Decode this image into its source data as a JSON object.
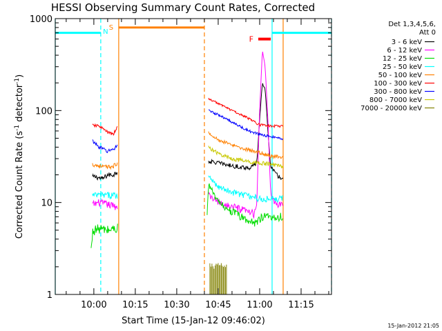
{
  "chart_data": {
    "type": "line",
    "title": "HESSI Observing Summary Count Rates, Corrected",
    "xlabel": "Start Time (15-Jan-12 09:46:02)",
    "ylabel": "Corrected Count Rate (s⁻¹ detector⁻¹)",
    "ylabel_parts": [
      "Corrected Count Rate (s",
      "-1",
      " detector",
      "-1",
      ")"
    ],
    "yscale": "log",
    "ylim": [
      1,
      1000
    ],
    "y_ticks": [
      {
        "value": 1,
        "label": "1"
      },
      {
        "value": 10,
        "label": "10"
      },
      {
        "value": 100,
        "label": "100"
      },
      {
        "value": 1000,
        "label": "1000"
      }
    ],
    "xlim": [
      "09:46:02",
      "11:26:00"
    ],
    "x_ticks": [
      "10:00",
      "10:15",
      "10:30",
      "10:45",
      "11:00",
      "11:15"
    ],
    "grid": false,
    "legend_position": "right",
    "legend_header": [
      "Det 1,3,4,5,6,",
      "Att 0"
    ],
    "series": [
      {
        "name": "3 - 6 keV",
        "color": "#000000",
        "segments": [
          {
            "x": [
              "09:59:30",
              "10:01",
              "10:03",
              "10:05",
              "10:07",
              "10:08:40"
            ],
            "y": [
              19,
              19,
              18,
              20,
              20,
              22
            ]
          },
          {
            "x": [
              "10:41:30",
              "10:45",
              "10:50",
              "10:55",
              "10:57",
              "10:59",
              "11:00",
              "11:01",
              "11:02",
              "11:03",
              "11:04",
              "11:06",
              "11:08:30"
            ],
            "y": [
              28,
              27,
              25,
              24,
              24,
              27,
              80,
              200,
              170,
              60,
              25,
              20,
              18
            ]
          }
        ]
      },
      {
        "name": "6 - 12 keV",
        "color": "#ff00ff",
        "segments": [
          {
            "x": [
              "09:59:30",
              "10:02",
              "10:05",
              "10:08:40"
            ],
            "y": [
              9.5,
              10,
              9.5,
              9
            ]
          },
          {
            "x": [
              "10:41:30",
              "10:45",
              "10:50",
              "10:55",
              "10:58",
              "10:59",
              "11:00",
              "11:01",
              "11:02",
              "11:03",
              "11:04",
              "11:06",
              "11:08:30"
            ],
            "y": [
              12,
              10,
              9,
              8,
              7.5,
              10,
              100,
              450,
              300,
              80,
              12,
              9.5,
              9.5
            ]
          }
        ]
      },
      {
        "name": "12 - 25 keV",
        "color": "#00dd00",
        "segments": [
          {
            "x": [
              "09:59:00",
              "09:59:40",
              "10:02",
              "10:05",
              "10:08:40"
            ],
            "y": [
              3,
              5,
              5.2,
              5,
              5.3
            ]
          },
          {
            "x": [
              "10:41:00",
              "10:41:30",
              "10:45",
              "10:50",
              "10:55",
              "10:58",
              "11:01",
              "11:04",
              "11:08:30"
            ],
            "y": [
              7,
              16,
              10,
              8,
              6.5,
              6,
              7,
              7,
              7
            ]
          }
        ]
      },
      {
        "name": "25 - 50 keV",
        "color": "#00ffff",
        "segments": [
          {
            "x": [
              "09:59:30",
              "10:08:40"
            ],
            "y": [
              12,
              12
            ]
          },
          {
            "x": [
              "10:41:30",
              "10:45",
              "10:50",
              "10:55",
              "11:00",
              "11:04",
              "11:08:30"
            ],
            "y": [
              19,
              15,
              13,
              12,
              11,
              11,
              11
            ]
          }
        ]
      },
      {
        "name": "50 - 100 keV",
        "color": "#ff8000",
        "segments": [
          {
            "x": [
              "09:59:30",
              "10:02",
              "10:05",
              "10:08:40"
            ],
            "y": [
              26,
              25,
              24,
              26
            ]
          },
          {
            "x": [
              "10:41:30",
              "10:45",
              "10:50",
              "10:55",
              "11:00",
              "11:04",
              "11:08:30"
            ],
            "y": [
              58,
              48,
              42,
              38,
              35,
              32,
              31
            ]
          }
        ]
      },
      {
        "name": "100 - 300 keV",
        "color": "#ff0000",
        "segments": [
          {
            "x": [
              "09:59:30",
              "10:02",
              "10:05",
              "10:07",
              "10:08:40"
            ],
            "y": [
              69,
              68,
              58,
              55,
              67
            ]
          },
          {
            "x": [
              "10:41:30",
              "10:45",
              "10:50",
              "10:55",
              "11:00",
              "11:04",
              "11:08:30"
            ],
            "y": [
              135,
              120,
              100,
              85,
              70,
              68,
              68
            ]
          }
        ]
      },
      {
        "name": "300 - 800 keV",
        "color": "#0000ff",
        "segments": [
          {
            "x": [
              "09:59:30",
              "10:02",
              "10:05",
              "10:07",
              "10:08:40"
            ],
            "y": [
              47,
              40,
              36,
              38,
              42
            ]
          },
          {
            "x": [
              "10:41:30",
              "10:45",
              "10:50",
              "10:55",
              "11:00",
              "11:04",
              "11:08:30"
            ],
            "y": [
              100,
              90,
              75,
              62,
              55,
              52,
              50
            ]
          }
        ]
      },
      {
        "name": "800 - 7000 keV",
        "color": "#c8c800",
        "segments": [
          {
            "x": [
              "10:41:30",
              "10:45",
              "10:50",
              "10:55",
              "11:00",
              "11:04",
              "11:08:30"
            ],
            "y": [
              40,
              34,
              30,
              28,
              27,
              26,
              25
            ]
          }
        ]
      },
      {
        "name": "7000 - 20000 keV",
        "color": "#808000",
        "segments": [
          {
            "x": [
              "10:42:00",
              "10:44:00",
              "10:46:00",
              "10:48:00"
            ],
            "y": [
              2,
              2,
              2,
              2
            ]
          }
        ]
      }
    ],
    "annotations": {
      "colors": {
        "night": "#00ffff",
        "saa": "#ff8000",
        "flare": "#ff0000"
      },
      "labels": {
        "night": "N",
        "saa": "S",
        "flare": "F"
      },
      "night_bars": [
        {
          "start": "09:46:02",
          "end": "10:02:30",
          "y": 700
        },
        {
          "start": "11:04:30",
          "end": "11:26:00",
          "y": 700
        }
      ],
      "saa_bar": {
        "start": "10:09:00",
        "end": "10:40:00",
        "y": 800
      },
      "flare_bar": {
        "start": "10:59:30",
        "end": "11:04:00",
        "y": 600
      },
      "night_markers": [
        {
          "time": "09:46:02",
          "style": "solid"
        },
        {
          "time": "10:02:30",
          "style": "dashed"
        },
        {
          "time": "11:04:30",
          "style": "solid"
        },
        {
          "time": "11:26:00",
          "style": "dashed"
        }
      ],
      "saa_markers": [
        {
          "time": "10:09:00",
          "style": "solid"
        },
        {
          "time": "10:40:00",
          "style": "dashed"
        },
        {
          "time": "11:08:30",
          "style": "solid"
        }
      ]
    },
    "footer_timestamp": "15-Jan-2012 21:05"
  }
}
